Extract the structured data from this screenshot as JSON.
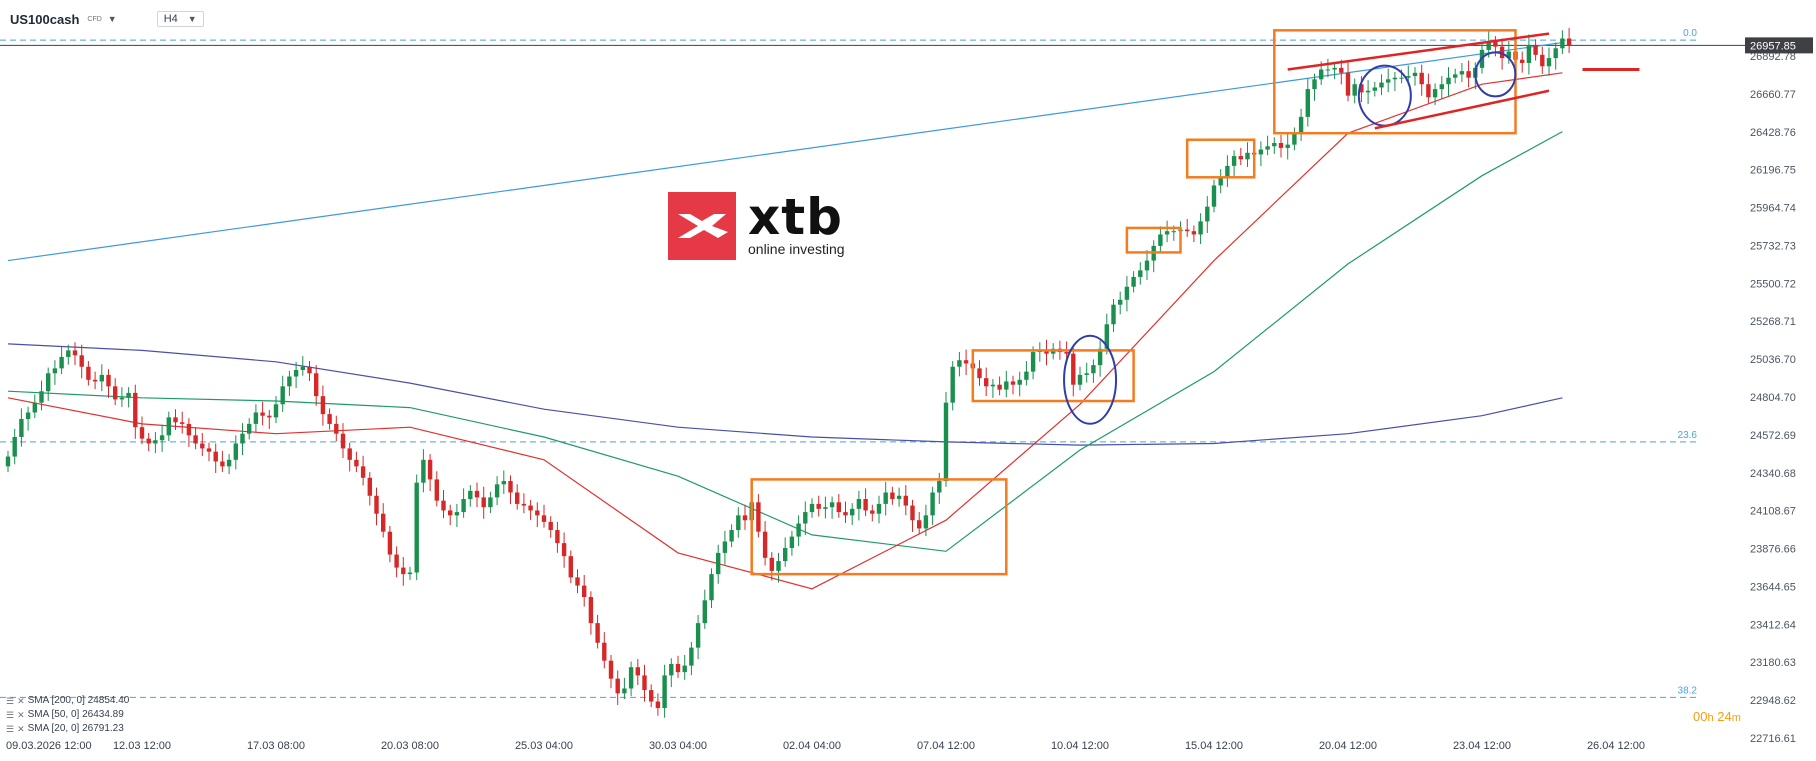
{
  "header": {
    "symbol": "US100cash",
    "symbol_type": "CFD",
    "timeframe": "H4"
  },
  "logo": {
    "wordmark": "xtb",
    "tagline": "online investing",
    "brand_color": "#e63946"
  },
  "legend": [
    {
      "label": "SMA [200, 0] 24854.40",
      "color": "#3d3d9e"
    },
    {
      "label": "SMA [50, 0] 26434.89",
      "color": "#1f9a6b"
    },
    {
      "label": "SMA [20, 0] 26791.23",
      "color": "#e03131"
    }
  ],
  "countdown": {
    "hours": "00",
    "h_unit": "h",
    "minutes": "24",
    "m_unit": "m"
  },
  "current_price_label": "26957.85",
  "chart_data": {
    "type": "candlestick",
    "title": "",
    "instrument": "US100cash",
    "timeframe": "H4",
    "ylim": [
      22716.61,
      27050.0
    ],
    "y_ticks": [
      "26892.78",
      "26660.77",
      "26428.76",
      "26196.75",
      "25964.74",
      "25732.73",
      "25500.72",
      "25268.71",
      "25036.70",
      "24804.70",
      "24572.69",
      "24340.68",
      "24108.67",
      "23876.66",
      "23644.65",
      "23412.64",
      "23180.63",
      "22948.62",
      "22716.61"
    ],
    "x_ticks": [
      "09.03.2026 12:00",
      "12.03 12:00",
      "17.03 08:00",
      "20.03 08:00",
      "25.03 04:00",
      "30.03 04:00",
      "02.04 04:00",
      "07.04 12:00",
      "10.04 12:00",
      "15.04 12:00",
      "20.04 12:00",
      "23.04 12:00",
      "26.04 12:00"
    ],
    "x_tick_index": [
      0,
      20,
      40,
      60,
      80,
      100,
      120,
      140,
      160,
      180,
      200,
      220,
      240
    ],
    "last_price": 26957.85,
    "fib_levels": [
      {
        "label": "0.0",
        "price": 26990.0
      },
      {
        "label": "23.6",
        "price": 24530.0
      },
      {
        "label": "38.2",
        "price": 22965.0
      }
    ],
    "closes": [
      24440,
      24560,
      24670,
      24710,
      24770,
      24840,
      24950,
      24980,
      25050,
      25090,
      25060,
      24990,
      24910,
      24900,
      24940,
      24870,
      24790,
      24800,
      24830,
      24620,
      24550,
      24520,
      24540,
      24570,
      24680,
      24650,
      24640,
      24570,
      24520,
      24490,
      24470,
      24410,
      24380,
      24420,
      24520,
      24580,
      24640,
      24710,
      24690,
      24680,
      24760,
      24870,
      24930,
      24970,
      24990,
      24950,
      24810,
      24700,
      24640,
      24580,
      24490,
      24420,
      24380,
      24310,
      24200,
      24090,
      23980,
      23840,
      23760,
      23720,
      23730,
      24280,
      24420,
      24300,
      24170,
      24110,
      24080,
      24100,
      24180,
      24230,
      24190,
      24130,
      24190,
      24270,
      24290,
      24220,
      24150,
      24140,
      24110,
      24080,
      24040,
      23990,
      23910,
      23830,
      23700,
      23650,
      23580,
      23420,
      23300,
      23190,
      23080,
      22990,
      23020,
      23150,
      23100,
      23010,
      22940,
      22900,
      23100,
      23170,
      23120,
      23160,
      23270,
      23420,
      23560,
      23720,
      23850,
      23920,
      23990,
      24080,
      24050,
      24160,
      23980,
      23820,
      23740,
      23800,
      23880,
      23950,
      24030,
      24100,
      24150,
      24120,
      24130,
      24160,
      24100,
      24080,
      24120,
      24180,
      24110,
      24090,
      24150,
      24220,
      24180,
      24200,
      24140,
      24050,
      24000,
      24080,
      24220,
      24290,
      24770,
      24990,
      25030,
      25010,
      24980,
      24920,
      24870,
      24880,
      24850,
      24900,
      24880,
      24910,
      24960,
      25080,
      25090,
      25070,
      25100,
      25080,
      25070,
      24880,
      24940,
      24950,
      25000,
      25100,
      25250,
      25370,
      25400,
      25480,
      25540,
      25580,
      25640,
      25730,
      25800,
      25820,
      25820,
      25830,
      25820,
      25800,
      25880,
      25970,
      26100,
      26150,
      26220,
      26280,
      26260,
      26300,
      26290,
      26320,
      26340,
      26360,
      26330,
      26350,
      26420,
      26520,
      26690,
      26750,
      26810,
      26810,
      26820,
      26790,
      26650,
      26720,
      26670,
      26680,
      26700,
      26730,
      26750,
      26760,
      26760,
      26770,
      26790,
      26720,
      26640,
      26690,
      26720,
      26760,
      26780,
      26800,
      26760,
      26820,
      26930,
      26980,
      26950,
      26880,
      26920,
      26870,
      26850,
      26960,
      26900,
      26830,
      26880,
      26940,
      27000,
      26957.85
    ],
    "series": [
      {
        "name": "SMA [200, 0]",
        "value": 24854.4,
        "x": [
          0,
          20,
          40,
          60,
          80,
          100,
          120,
          140,
          160,
          180,
          200,
          220,
          232
        ],
        "values": [
          25130,
          25090,
          25020,
          24890,
          24730,
          24620,
          24560,
          24530,
          24510,
          24520,
          24580,
          24690,
          24800
        ]
      },
      {
        "name": "SMA [50, 0]",
        "value": 26434.89,
        "x": [
          0,
          20,
          40,
          60,
          80,
          100,
          120,
          140,
          160,
          180,
          200,
          220,
          232
        ],
        "values": [
          24840,
          24800,
          24780,
          24740,
          24560,
          24320,
          23960,
          23860,
          24480,
          24960,
          25620,
          26160,
          26430
        ]
      },
      {
        "name": "SMA [20, 0]",
        "value": 26791.23,
        "x": [
          0,
          20,
          40,
          60,
          80,
          100,
          120,
          140,
          160,
          180,
          200,
          220,
          232
        ],
        "values": [
          24800,
          24640,
          24580,
          24620,
          24420,
          23850,
          23630,
          24050,
          24760,
          25640,
          26420,
          26720,
          26790
        ]
      }
    ],
    "trendline": {
      "x": [
        0,
        232
      ],
      "values": [
        25640,
        26975
      ]
    }
  }
}
